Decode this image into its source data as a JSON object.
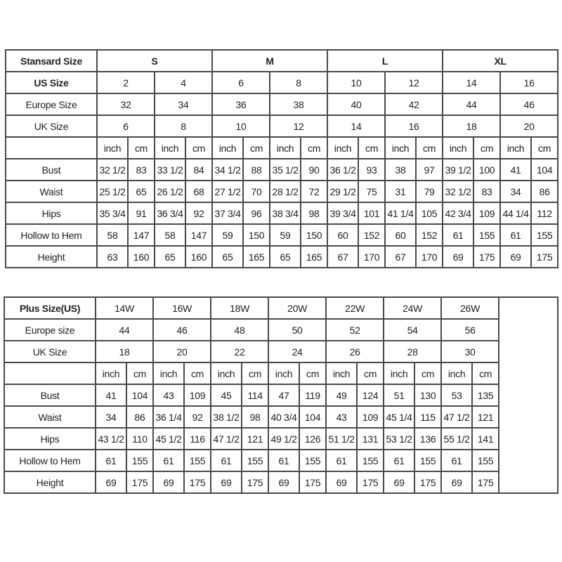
{
  "standard": {
    "header_label": "Stansard Size",
    "groups": [
      "S",
      "M",
      "L",
      "XL"
    ],
    "us_label": "US Size",
    "us": [
      "2",
      "4",
      "6",
      "8",
      "10",
      "12",
      "14",
      "16"
    ],
    "europe_label": "Europe Size",
    "europe": [
      "32",
      "34",
      "36",
      "38",
      "40",
      "42",
      "44",
      "46"
    ],
    "uk_label": "UK Size",
    "uk": [
      "6",
      "8",
      "10",
      "12",
      "14",
      "16",
      "18",
      "20"
    ],
    "unit_inch": "inch",
    "unit_cm": "cm",
    "rows": [
      {
        "label": "Bust",
        "values": [
          "32 1/2",
          "83",
          "33 1/2",
          "84",
          "34 1/2",
          "88",
          "35 1/2",
          "90",
          "36 1/2",
          "93",
          "38",
          "97",
          "39 1/2",
          "100",
          "41",
          "104"
        ]
      },
      {
        "label": "Waist",
        "values": [
          "25 1/2",
          "65",
          "26 1/2",
          "68",
          "27 1/2",
          "70",
          "28 1/2",
          "72",
          "29 1/2",
          "75",
          "31",
          "79",
          "32 1/2",
          "83",
          "34",
          "86"
        ]
      },
      {
        "label": "Hips",
        "values": [
          "35 3/4",
          "91",
          "36 3/4",
          "92",
          "37 3/4",
          "96",
          "38 3/4",
          "98",
          "39 3/4",
          "101",
          "41 1/4",
          "105",
          "42 3/4",
          "109",
          "44 1/4",
          "112"
        ]
      },
      {
        "label": "Hollow to Hem",
        "values": [
          "58",
          "147",
          "58",
          "147",
          "59",
          "150",
          "59",
          "150",
          "60",
          "152",
          "60",
          "152",
          "61",
          "155",
          "61",
          "155"
        ]
      },
      {
        "label": "Height",
        "values": [
          "63",
          "160",
          "65",
          "160",
          "65",
          "165",
          "65",
          "165",
          "67",
          "170",
          "67",
          "170",
          "69",
          "175",
          "69",
          "175"
        ]
      }
    ]
  },
  "plus": {
    "header_label": "Plus Size(US)",
    "sizes": [
      "14W",
      "16W",
      "18W",
      "20W",
      "22W",
      "24W",
      "26W"
    ],
    "europe_label": "Europe size",
    "europe": [
      "44",
      "46",
      "48",
      "50",
      "52",
      "54",
      "56"
    ],
    "uk_label": "UK Size",
    "uk": [
      "18",
      "20",
      "22",
      "24",
      "26",
      "28",
      "30"
    ],
    "unit_inch": "inch",
    "unit_cm": "cm",
    "rows": [
      {
        "label": "Bust",
        "values": [
          "41",
          "104",
          "43",
          "109",
          "45",
          "114",
          "47",
          "119",
          "49",
          "124",
          "51",
          "130",
          "53",
          "135"
        ]
      },
      {
        "label": "Waist",
        "values": [
          "34",
          "86",
          "36 1/4",
          "92",
          "38 1/2",
          "98",
          "40 3/4",
          "104",
          "43",
          "109",
          "45 1/4",
          "115",
          "47 1/2",
          "121"
        ]
      },
      {
        "label": "Hips",
        "values": [
          "43 1/2",
          "110",
          "45 1/2",
          "116",
          "47 1/2",
          "121",
          "49 1/2",
          "126",
          "51 1/2",
          "131",
          "53 1/2",
          "136",
          "55 1/2",
          "141"
        ]
      },
      {
        "label": "Hollow to Hem",
        "values": [
          "61",
          "155",
          "61",
          "155",
          "61",
          "155",
          "61",
          "155",
          "61",
          "155",
          "61",
          "155",
          "61",
          "155"
        ]
      },
      {
        "label": "Height",
        "values": [
          "69",
          "175",
          "69",
          "175",
          "69",
          "175",
          "69",
          "175",
          "69",
          "175",
          "69",
          "175",
          "69",
          "175"
        ]
      }
    ]
  }
}
